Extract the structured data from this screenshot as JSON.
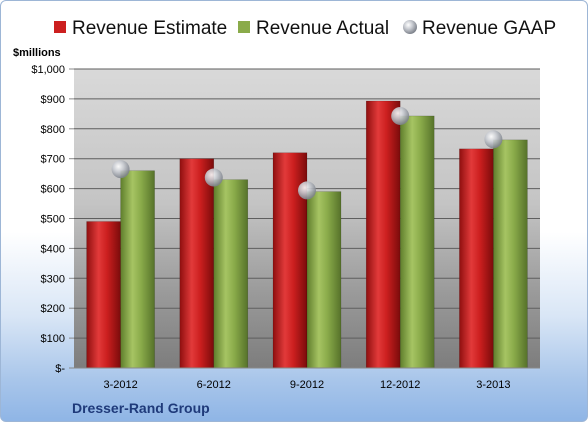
{
  "chart_data": {
    "type": "bar",
    "ylabel": "$millions",
    "caption": "Dresser-Rand Group",
    "categories": [
      "3-2012",
      "6-2012",
      "9-2012",
      "12-2012",
      "3-2013"
    ],
    "ylim": [
      0,
      1000
    ],
    "yticks": [
      {
        "value": 0,
        "label": "$-"
      },
      {
        "value": 100,
        "label": "$100"
      },
      {
        "value": 200,
        "label": "$200"
      },
      {
        "value": 300,
        "label": "$300"
      },
      {
        "value": 400,
        "label": "$400"
      },
      {
        "value": 500,
        "label": "$500"
      },
      {
        "value": 600,
        "label": "$600"
      },
      {
        "value": 700,
        "label": "$700"
      },
      {
        "value": 800,
        "label": "$800"
      },
      {
        "value": 900,
        "label": "$900"
      },
      {
        "value": 1000,
        "label": "$1,000"
      }
    ],
    "series": [
      {
        "name": "Revenue Estimate",
        "kind": "bar",
        "color": "#cc1f1f",
        "values": [
          490,
          700,
          720,
          893,
          733
        ]
      },
      {
        "name": "Revenue Actual",
        "kind": "bar",
        "color": "#8aab4a",
        "values": [
          660,
          630,
          590,
          843,
          763
        ]
      },
      {
        "name": "Revenue GAAP",
        "kind": "marker",
        "color": "#b8bcc4",
        "values": [
          665,
          637,
          594,
          843,
          765
        ]
      }
    ],
    "legend_position": "top",
    "grid": true
  }
}
